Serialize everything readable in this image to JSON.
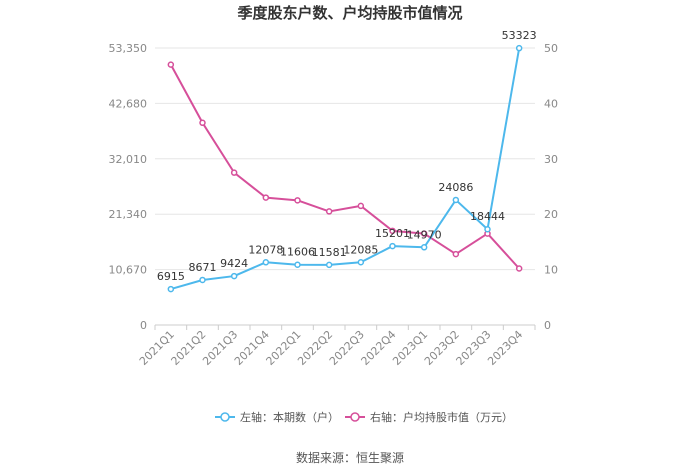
{
  "chart_data": {
    "type": "line",
    "title": "季度股东户数、户均持股市值情况",
    "categories": [
      "2021Q1",
      "2021Q2",
      "2021Q3",
      "2021Q4",
      "2022Q1",
      "2022Q2",
      "2022Q3",
      "2022Q4",
      "2023Q1",
      "2023Q2",
      "2023Q3",
      "2023Q4"
    ],
    "left_axis": {
      "ylim": [
        0,
        53350
      ],
      "ticks": [
        "0",
        "10,670",
        "21,340",
        "32,010",
        "42,680",
        "53,350"
      ]
    },
    "right_axis": {
      "ylim": [
        0,
        50
      ],
      "ticks": [
        "0",
        "10",
        "20",
        "30",
        "40",
        "50"
      ]
    },
    "series": [
      {
        "name": "左轴：本期数（户）",
        "axis": "left",
        "color": "#4db8ec",
        "values": [
          6915,
          8671,
          9424,
          12078,
          11606,
          11581,
          12085,
          15201,
          14970,
          24086,
          18444,
          53323
        ],
        "labels": [
          "6915",
          "8671",
          "9424",
          "12078",
          "11606",
          "11581",
          "12085",
          "15201",
          "14970",
          "24086",
          "18444",
          "53323"
        ]
      },
      {
        "name": "右轴：户均持股市值（万元）",
        "axis": "right",
        "color": "#d64f9a",
        "values": [
          47.0,
          36.5,
          27.5,
          23.0,
          22.5,
          20.5,
          21.5,
          17.0,
          16.5,
          12.8,
          16.5,
          10.2
        ]
      }
    ],
    "legend_position": "bottom",
    "grid": true
  },
  "source_text": "数据来源：恒生聚源"
}
